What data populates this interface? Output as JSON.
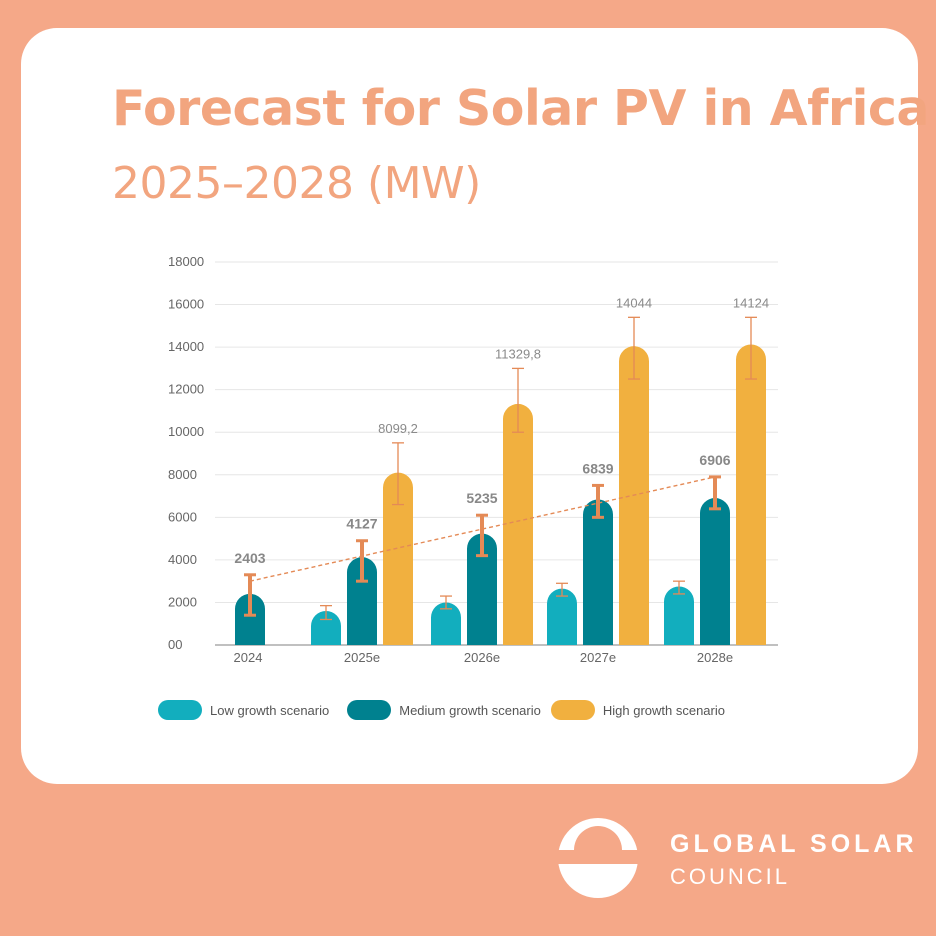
{
  "header": {
    "title": "Forecast for Solar PV in Africa",
    "subtitle": "2025–2028 (MW)"
  },
  "logo": {
    "line1": "GLOBAL SOLAR",
    "line2": "COUNCIL"
  },
  "colors": {
    "background": "#F5A888",
    "title": "#F2A57F",
    "low": "#12AEBE",
    "medium": "#00818F",
    "high": "#F1B03F",
    "error_bar": "#E48A56"
  },
  "chart_data": {
    "type": "bar",
    "categories": [
      "2024",
      "2025e",
      "2026e",
      "2027e",
      "2028e"
    ],
    "ylim": [
      0,
      18000
    ],
    "yticks": [
      0,
      2000,
      4000,
      6000,
      8000,
      10000,
      12000,
      14000,
      16000,
      18000
    ],
    "ytick_labels": [
      "00",
      "2000",
      "4000",
      "6000",
      "8000",
      "10000",
      "12000",
      "14000",
      "16000",
      "18000"
    ],
    "grid": true,
    "legend_position": "bottom",
    "series": [
      {
        "name": "Low growth scenario",
        "color": "#12AEBE",
        "values": [
          null,
          1600,
          2000,
          2650,
          2750
        ],
        "error": [
          null,
          [
            1200,
            1850
          ],
          [
            1700,
            2300
          ],
          [
            2300,
            2900
          ],
          [
            2400,
            3000
          ]
        ],
        "data_labels": [
          null,
          null,
          null,
          null,
          null
        ]
      },
      {
        "name": "Medium growth scenario",
        "color": "#00818F",
        "values": [
          2403,
          4127,
          5235,
          6839,
          6906
        ],
        "error": [
          [
            1400,
            3300
          ],
          [
            3000,
            4900
          ],
          [
            4200,
            6100
          ],
          [
            6000,
            7500
          ],
          [
            6400,
            7900
          ]
        ],
        "data_labels": [
          "2403",
          "4127",
          "5235",
          "6839",
          "6906"
        ]
      },
      {
        "name": "High growth scenario",
        "color": "#F1B03F",
        "values": [
          null,
          8099.2,
          11329.8,
          14044,
          14124
        ],
        "error": [
          null,
          [
            6600,
            9500
          ],
          [
            10000,
            13000
          ],
          [
            12500,
            15400
          ],
          [
            12500,
            15400
          ]
        ],
        "data_labels": [
          null,
          "8099,2",
          "11329,8",
          "14044",
          "14124"
        ]
      }
    ],
    "trendline": {
      "series": "Medium growth scenario",
      "from": 3000,
      "to": 7900
    }
  }
}
